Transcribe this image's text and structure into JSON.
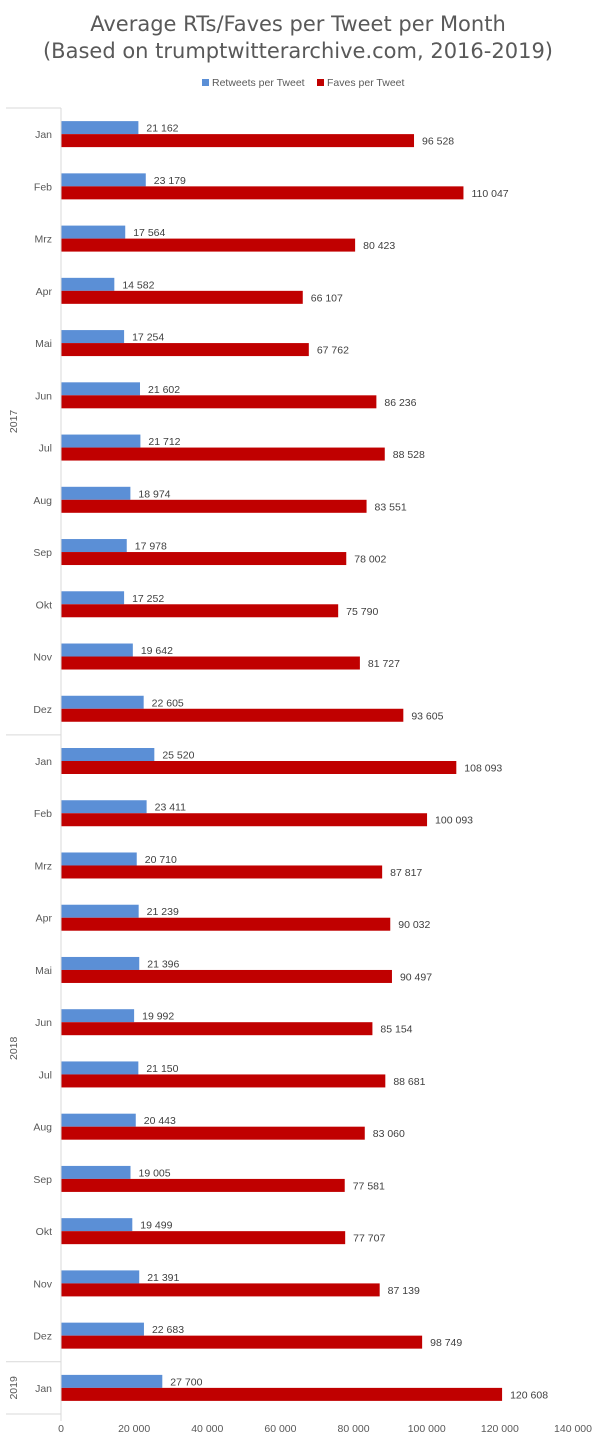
{
  "chart_data": {
    "type": "bar",
    "orientation": "horizontal",
    "title": [
      "Average RTs/Faves per Tweet per Month",
      "(Based on trumptwitterarchive.com, 2016-2019)"
    ],
    "legend": {
      "placement": "top",
      "entries": [
        "Retweets per Tweet",
        "Faves per Tweet"
      ]
    },
    "colors": {
      "Retweets per Tweet": "#5b8fd6",
      "Faves per Tweet": "#c00000"
    },
    "groups": [
      {
        "label": "2017",
        "categories": [
          "Jan",
          "Feb",
          "Mrz",
          "Apr",
          "Mai",
          "Jun",
          "Jul",
          "Aug",
          "Sep",
          "Okt",
          "Nov",
          "Dez"
        ]
      },
      {
        "label": "2018",
        "categories": [
          "Jan",
          "Feb",
          "Mrz",
          "Apr",
          "Mai",
          "Jun",
          "Jul",
          "Aug",
          "Sep",
          "Okt",
          "Nov",
          "Dez"
        ]
      },
      {
        "label": "2019",
        "categories": [
          "Jan"
        ]
      }
    ],
    "series": [
      {
        "name": "Retweets per Tweet",
        "values": [
          21162,
          23179,
          17564,
          14582,
          17254,
          21602,
          21712,
          18974,
          17978,
          17252,
          19642,
          22605,
          25520,
          23411,
          20710,
          21239,
          21396,
          19992,
          21150,
          20443,
          19005,
          19499,
          21391,
          22683,
          27700
        ],
        "labels": [
          "21 162",
          "23 179",
          "17 564",
          "14 582",
          "17 254",
          "21 602",
          "21 712",
          "18 974",
          "17 978",
          "17 252",
          "19 642",
          "22 605",
          "25 520",
          "23 411",
          "20 710",
          "21 239",
          "21 396",
          "19 992",
          "21 150",
          "20 443",
          "19 005",
          "19 499",
          "21 391",
          "22 683",
          "27 700"
        ]
      },
      {
        "name": "Faves per Tweet",
        "values": [
          96528,
          110047,
          80423,
          66107,
          67762,
          86236,
          88528,
          83551,
          78002,
          75790,
          81727,
          93605,
          108093,
          100093,
          87817,
          90032,
          90497,
          85154,
          88681,
          83060,
          77581,
          77707,
          87139,
          98749,
          120608
        ],
        "labels": [
          "96 528",
          "110 047",
          "80 423",
          "66 107",
          "67 762",
          "86 236",
          "88 528",
          "83 551",
          "78 002",
          "75 790",
          "81 727",
          "93 605",
          "108 093",
          "100 093",
          "87 817",
          "90 032",
          "90 497",
          "85 154",
          "88 681",
          "83 060",
          "77 581",
          "77 707",
          "87 139",
          "98 749",
          "120 608"
        ]
      }
    ],
    "xlim": [
      0,
      140000
    ],
    "xticks": [
      0,
      20000,
      40000,
      60000,
      80000,
      100000,
      120000,
      140000
    ],
    "xtick_labels": [
      "0",
      "20 000",
      "40 000",
      "60 000",
      "80 000",
      "100 000",
      "120 000",
      "140 000"
    ],
    "grid": false
  }
}
